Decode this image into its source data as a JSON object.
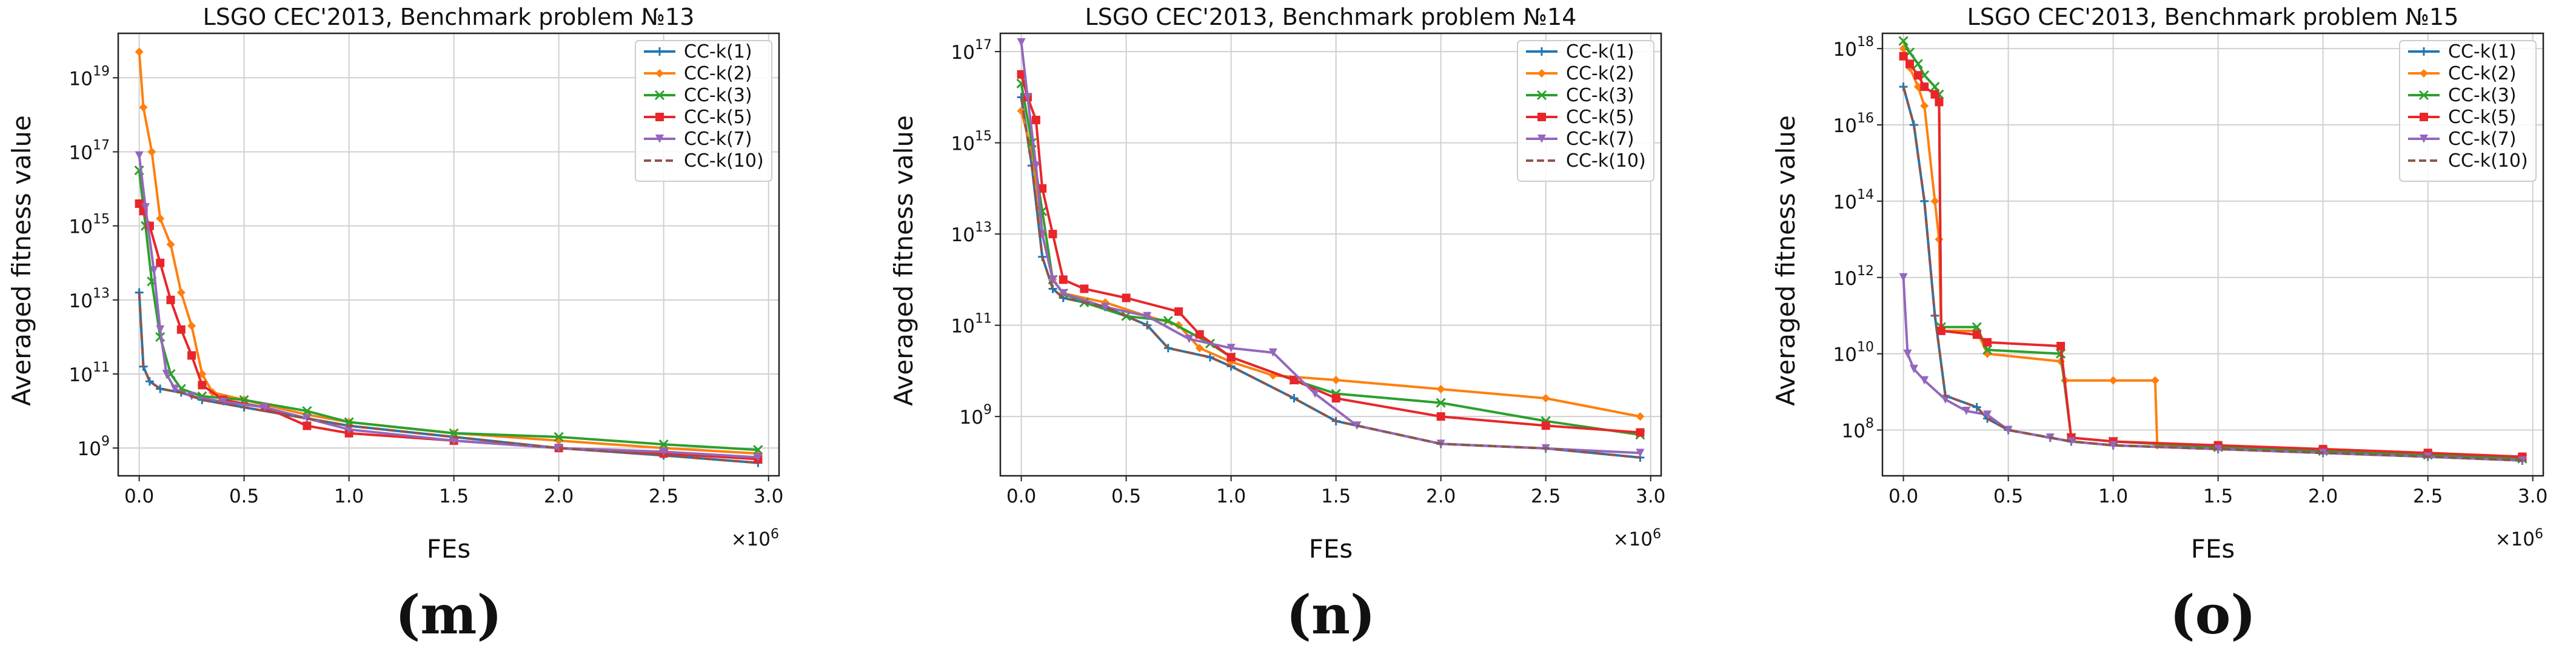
{
  "figure": {
    "subfigure_labels": [
      "(m)",
      "(n)",
      "(o)"
    ]
  },
  "legend_style": [
    {
      "name": "CC-k(1)",
      "color": "#1f77b4",
      "marker": "plus",
      "dash": ""
    },
    {
      "name": "CC-k(2)",
      "color": "#ff7f0e",
      "marker": "diamond",
      "dash": ""
    },
    {
      "name": "CC-k(3)",
      "color": "#2ca02c",
      "marker": "x",
      "dash": ""
    },
    {
      "name": "CC-k(5)",
      "color": "#e8262a",
      "marker": "square",
      "dash": ""
    },
    {
      "name": "CC-k(7)",
      "color": "#9467bd",
      "marker": "triangle",
      "dash": ""
    },
    {
      "name": "CC-k(10)",
      "color": "#8c564b",
      "marker": "none",
      "dash": "dashed"
    }
  ],
  "chart_data": [
    {
      "type": "line",
      "title": "LSGO CEC'2013, Benchmark problem №13",
      "xlabel": "FEs",
      "ylabel": "Averaged fitness value",
      "x_multiplier": "×10^6",
      "x_multiplier_base": "×10",
      "x_multiplier_exp": "6",
      "xlim": [
        -0.1,
        3.05
      ],
      "ylog10_lim": [
        8.25,
        20.2
      ],
      "xticks": [
        "0.0",
        "0.5",
        "1.0",
        "1.5",
        "2.0",
        "2.5",
        "3.0"
      ],
      "yticks_exp": [
        9,
        11,
        13,
        15,
        17,
        19
      ],
      "grid": true,
      "legend": "top-right",
      "series": [
        {
          "name": "CC-k(1)",
          "x": [
            0,
            0.02,
            0.05,
            0.1,
            0.2,
            0.3,
            0.5,
            0.8,
            1.0,
            1.5,
            2.0,
            2.5,
            2.95
          ],
          "log10_y": [
            13.2,
            11.2,
            10.8,
            10.6,
            10.5,
            10.3,
            10.1,
            9.8,
            9.6,
            9.3,
            9.0,
            8.8,
            8.6
          ]
        },
        {
          "name": "CC-k(2)",
          "x": [
            0,
            0.02,
            0.06,
            0.1,
            0.15,
            0.2,
            0.25,
            0.3,
            0.35,
            0.5,
            0.8,
            1.0,
            1.5,
            2.0,
            2.5,
            2.95
          ],
          "log10_y": [
            19.7,
            18.2,
            17.0,
            15.2,
            14.5,
            13.2,
            12.3,
            11.0,
            10.5,
            10.3,
            9.9,
            9.7,
            9.4,
            9.2,
            9.0,
            8.85
          ]
        },
        {
          "name": "CC-k(3)",
          "x": [
            0,
            0.03,
            0.06,
            0.1,
            0.15,
            0.2,
            0.3,
            0.5,
            0.8,
            1.0,
            1.5,
            2.0,
            2.5,
            2.95
          ],
          "log10_y": [
            16.5,
            15.0,
            13.5,
            12.0,
            11.0,
            10.6,
            10.4,
            10.3,
            10.0,
            9.7,
            9.4,
            9.3,
            9.1,
            8.95
          ]
        },
        {
          "name": "CC-k(5)",
          "x": [
            0,
            0.02,
            0.05,
            0.1,
            0.15,
            0.2,
            0.25,
            0.3,
            0.4,
            0.6,
            0.8,
            1.0,
            1.5,
            2.0,
            2.5,
            2.95
          ],
          "log10_y": [
            15.6,
            15.4,
            15.0,
            14.0,
            13.0,
            12.2,
            11.5,
            10.7,
            10.3,
            10.1,
            9.6,
            9.4,
            9.2,
            9.0,
            8.85,
            8.7
          ]
        },
        {
          "name": "CC-k(7)",
          "x": [
            0,
            0.03,
            0.07,
            0.1,
            0.13,
            0.17,
            0.25,
            0.4,
            0.6,
            0.8,
            1.0,
            1.5,
            2.0,
            2.5,
            2.95
          ],
          "log10_y": [
            16.9,
            15.5,
            13.8,
            12.2,
            11.0,
            10.6,
            10.4,
            10.25,
            10.1,
            9.8,
            9.5,
            9.2,
            9.0,
            8.9,
            8.75
          ]
        },
        {
          "name": "CC-k(10)",
          "x": [
            0,
            0.02,
            0.05,
            0.1,
            0.2,
            0.3,
            0.5,
            0.8,
            1.0,
            1.5,
            2.0,
            2.5,
            2.95
          ],
          "log10_y": [
            13.2,
            11.2,
            10.8,
            10.6,
            10.5,
            10.3,
            10.1,
            9.8,
            9.6,
            9.3,
            9.0,
            8.8,
            8.6
          ]
        }
      ]
    },
    {
      "type": "line",
      "title": "LSGO CEC'2013, Benchmark problem №14",
      "xlabel": "FEs",
      "ylabel": "Averaged fitness value",
      "x_multiplier": "×10^6",
      "x_multiplier_base": "×10",
      "x_multiplier_exp": "6",
      "xlim": [
        -0.1,
        3.05
      ],
      "ylog10_lim": [
        7.7,
        17.4
      ],
      "xticks": [
        "0.0",
        "0.5",
        "1.0",
        "1.5",
        "2.0",
        "2.5",
        "3.0"
      ],
      "yticks_exp": [
        9,
        11,
        13,
        15,
        17
      ],
      "grid": true,
      "legend": "top-right",
      "series": [
        {
          "name": "CC-k(1)",
          "x": [
            0,
            0.05,
            0.1,
            0.15,
            0.2,
            0.4,
            0.6,
            0.7,
            0.9,
            1.0,
            1.3,
            1.5,
            2.0,
            2.5,
            2.95
          ],
          "log10_y": [
            16.0,
            14.5,
            12.5,
            11.8,
            11.6,
            11.4,
            11.0,
            10.5,
            10.3,
            10.1,
            9.4,
            8.9,
            8.4,
            8.3,
            8.1
          ]
        },
        {
          "name": "CC-k(2)",
          "x": [
            0,
            0.05,
            0.1,
            0.15,
            0.2,
            0.4,
            0.6,
            0.75,
            0.85,
            1.0,
            1.2,
            1.5,
            2.0,
            2.5,
            2.95
          ],
          "log10_y": [
            15.7,
            14.8,
            13.0,
            12.0,
            11.7,
            11.5,
            11.2,
            11.0,
            10.5,
            10.2,
            9.9,
            9.8,
            9.6,
            9.4,
            9.0
          ]
        },
        {
          "name": "CC-k(3)",
          "x": [
            0,
            0.05,
            0.1,
            0.15,
            0.2,
            0.3,
            0.5,
            0.7,
            0.9,
            1.0,
            1.3,
            1.5,
            2.0,
            2.5,
            2.95
          ],
          "log10_y": [
            16.3,
            15.0,
            13.5,
            12.0,
            11.7,
            11.5,
            11.2,
            11.1,
            10.6,
            10.3,
            9.8,
            9.5,
            9.3,
            8.9,
            8.6
          ]
        },
        {
          "name": "CC-k(5)",
          "x": [
            0,
            0.03,
            0.07,
            0.1,
            0.15,
            0.2,
            0.3,
            0.5,
            0.75,
            0.85,
            1.0,
            1.3,
            1.5,
            2.0,
            2.5,
            2.95
          ],
          "log10_y": [
            16.5,
            16.0,
            15.5,
            14.0,
            13.0,
            12.0,
            11.8,
            11.6,
            11.3,
            10.8,
            10.3,
            9.8,
            9.4,
            9.0,
            8.8,
            8.65
          ]
        },
        {
          "name": "CC-k(7)",
          "x": [
            0,
            0.03,
            0.07,
            0.1,
            0.15,
            0.2,
            0.4,
            0.6,
            0.8,
            1.0,
            1.2,
            1.4,
            1.6,
            2.0,
            2.5,
            2.95
          ],
          "log10_y": [
            17.2,
            16.0,
            14.5,
            13.0,
            12.0,
            11.7,
            11.4,
            11.2,
            10.7,
            10.5,
            10.4,
            9.5,
            8.8,
            8.4,
            8.3,
            8.2
          ]
        },
        {
          "name": "CC-k(10)",
          "x": [
            0,
            0.05,
            0.1,
            0.15,
            0.2,
            0.4,
            0.6,
            0.7,
            0.9,
            1.0,
            1.3,
            1.5,
            2.0,
            2.5,
            2.95
          ],
          "log10_y": [
            16.0,
            14.5,
            12.5,
            11.8,
            11.6,
            11.4,
            11.0,
            10.5,
            10.3,
            10.1,
            9.4,
            8.9,
            8.4,
            8.3,
            8.1
          ]
        }
      ]
    },
    {
      "type": "line",
      "title": "LSGO CEC'2013, Benchmark problem №15",
      "xlabel": "FEs",
      "ylabel": "Averaged fitness value",
      "x_multiplier": "×10^6",
      "x_multiplier_base": "×10",
      "x_multiplier_exp": "6",
      "xlim": [
        -0.1,
        3.05
      ],
      "ylog10_lim": [
        6.8,
        18.4
      ],
      "xticks": [
        "0.0",
        "0.5",
        "1.0",
        "1.5",
        "2.0",
        "2.5",
        "3.0"
      ],
      "yticks_exp": [
        8,
        10,
        12,
        14,
        16,
        18
      ],
      "grid": true,
      "legend": "top-right",
      "series": [
        {
          "name": "CC-k(1)",
          "x": [
            0,
            0.05,
            0.1,
            0.15,
            0.2,
            0.35,
            0.4,
            0.5,
            0.7,
            0.8,
            1.0,
            1.5,
            2.0,
            2.5,
            2.95
          ],
          "log10_y": [
            17.0,
            16.0,
            14.0,
            11.0,
            8.9,
            8.6,
            8.3,
            8.0,
            7.8,
            7.7,
            7.6,
            7.5,
            7.4,
            7.3,
            7.2
          ]
        },
        {
          "name": "CC-k(2)",
          "x": [
            0,
            0.03,
            0.07,
            0.1,
            0.15,
            0.17,
            0.18,
            0.35,
            0.4,
            0.75,
            0.77,
            1.0,
            1.2,
            1.21,
            1.5,
            2.0,
            2.5,
            2.95
          ],
          "log10_y": [
            18.0,
            17.5,
            17.0,
            16.5,
            14.0,
            13.0,
            10.6,
            10.6,
            10.0,
            9.8,
            9.3,
            9.3,
            9.3,
            7.6,
            7.55,
            7.45,
            7.35,
            7.25
          ]
        },
        {
          "name": "CC-k(3)",
          "x": [
            0,
            0.03,
            0.07,
            0.1,
            0.15,
            0.17,
            0.18,
            0.35,
            0.4,
            0.75,
            0.8,
            1.0,
            1.5,
            2.0,
            2.5,
            2.95
          ],
          "log10_y": [
            18.2,
            17.9,
            17.6,
            17.3,
            17.0,
            16.8,
            10.7,
            10.7,
            10.1,
            10.0,
            7.8,
            7.7,
            7.55,
            7.45,
            7.35,
            7.25
          ]
        },
        {
          "name": "CC-k(5)",
          "x": [
            0,
            0.03,
            0.07,
            0.1,
            0.15,
            0.17,
            0.18,
            0.35,
            0.4,
            0.75,
            0.8,
            1.0,
            1.5,
            2.0,
            2.5,
            2.95
          ],
          "log10_y": [
            17.8,
            17.6,
            17.3,
            17.0,
            16.8,
            16.6,
            10.6,
            10.5,
            10.3,
            10.2,
            7.8,
            7.7,
            7.6,
            7.5,
            7.4,
            7.3
          ]
        },
        {
          "name": "CC-k(7)",
          "x": [
            0,
            0.02,
            0.05,
            0.1,
            0.2,
            0.3,
            0.4,
            0.5,
            0.7,
            0.8,
            1.0,
            1.5,
            2.0,
            2.5,
            2.95
          ],
          "log10_y": [
            12.0,
            10.0,
            9.6,
            9.3,
            8.8,
            8.5,
            8.4,
            8.0,
            7.8,
            7.7,
            7.6,
            7.5,
            7.4,
            7.3,
            7.2
          ]
        },
        {
          "name": "CC-k(10)",
          "x": [
            0,
            0.05,
            0.1,
            0.15,
            0.2,
            0.35,
            0.4,
            0.5,
            0.7,
            0.8,
            1.0,
            1.5,
            2.0,
            2.5,
            2.95
          ],
          "log10_y": [
            17.0,
            16.0,
            14.0,
            11.0,
            8.9,
            8.6,
            8.3,
            8.0,
            7.8,
            7.7,
            7.6,
            7.5,
            7.4,
            7.3,
            7.2
          ]
        }
      ]
    }
  ]
}
